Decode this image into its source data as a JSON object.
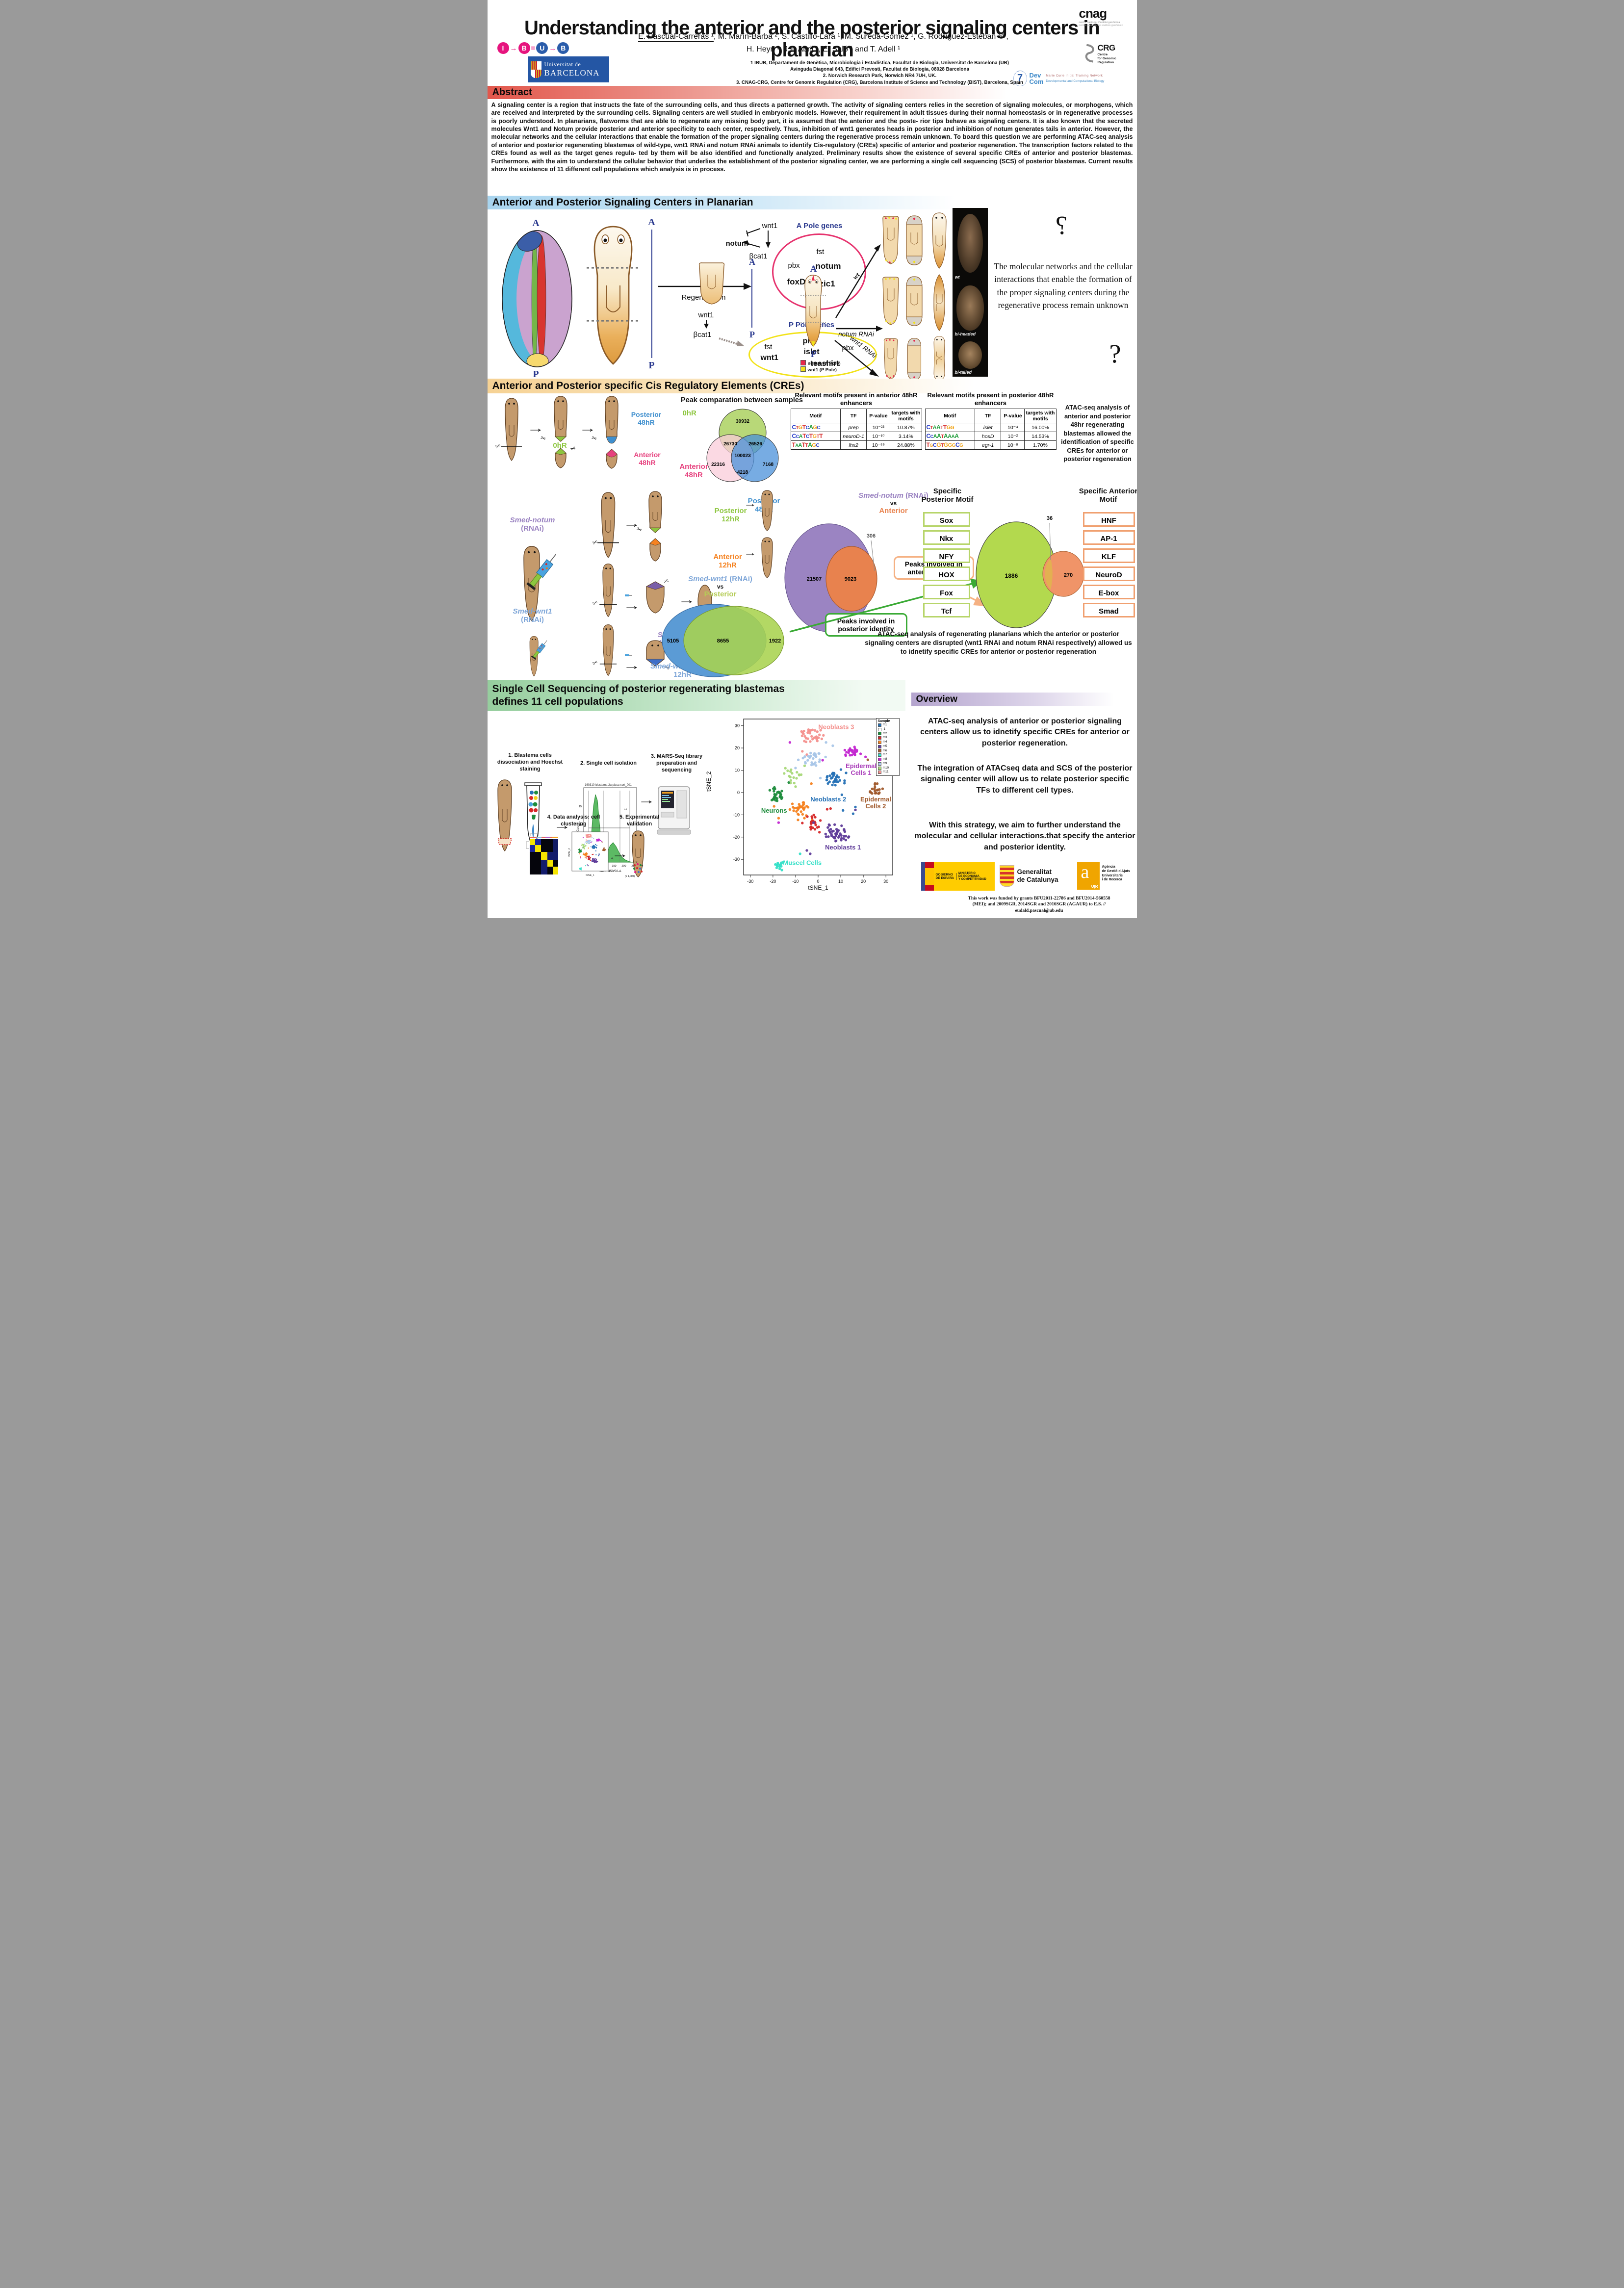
{
  "poster": {
    "title": "Understanding the anterior and the posterior signaling centers in planarian",
    "authors1a": "E. Pascual-Carreras ¹",
    "authors1b": ", M. Marín-Barba ², S. Castillo-Lara ¹, M. Sureda-Gómez ¹, G. Rodríguez-Esteban ³/⁴,",
    "authors2": "H. Heyn ³, J.F. Abril ¹, E. Saló ¹ and T. Adell ¹",
    "affiliations": [
      "1 IBUB, Departament de Genètica, Microbiologia i Estadística, Facultat de Biologia, Universitat de Barcelona (UB)",
      "Avinguda Diagonal 643, Edifici Prevosti, Facultat de Biologia, 08028 Barcelona",
      "2. Norwich Research Park, Norwich NR4 7UH, UK.",
      "3. CNAG-CRG, Centre for Genomic Regulation (CRG), Barcelona Institute of Science and Technology (BIST), Barcelona, Spain",
      "4. Universitat Pompeu Fabra (UPF), Barcelona, Spain"
    ],
    "logos": {
      "ibub": {
        "l1": "I",
        "s1": "→",
        "l2": "B",
        "s2": "=",
        "l3": "U",
        "s3": "→",
        "l4": "B"
      },
      "ub1": "Universitat de",
      "ub2": "BARCELONA",
      "cnag": "cnag",
      "cnag_sub1": "centre nacional d'anàlisi genòmica",
      "cnag_sub2": "centro nacional de análisis genómico",
      "crg": "CRG",
      "crg_sub1": "Centre",
      "crg_sub2": "for Genomic",
      "crg_sub3": "Regulation",
      "eu7": "7",
      "dev": "Dev",
      "com": "Com",
      "mc": "Marie Curie Initial Training Network",
      "dcb": "Developmental and Computational Biology"
    }
  },
  "abstract": {
    "heading": "Abstract",
    "body": "A signaling center is a region that instructs the fate of the surrounding cells, and thus directs a patterned growth. The activity of signaling centers relies in the secretion of signaling molecules, or morphogens, which are received and interpreted by the surrounding cells. Signaling centers are well studied in embryonic models. However, their requirement in adult tissues during their normal homeostasis or in regenerative processes is poorly understood. In planarians, flatworms that are able to regenerate any missing body part, it is assumed that the anterior and the poste- rior tips behave as signaling centers. It is also known that the secreted molecules Wnt1 and Notum provide posterior and anterior specificity to each center, respectively. Thus, inhibition of wnt1 generates heads in posterior and inhibition of notum generates tails in anterior. However, the molecular networks and the cellular interactions that enable the formation of the proper signaling centers during the regenerative process remain unknown. To board this question we are performing ATAC-seq analysis of anterior and posterior regenerating blastemas of wild-type, wnt1 RNAi and notum RNAi animals to identify Cis-regulatory (CREs) specific of anterior and posterior regeneration. The transcription factors related to the CREs found as well as the target genes regula- ted by them will be also identified and functionally analyzed. Preliminary results show the existence of several specific CREs of anterior and posterior blastemas. Furthermore, with the aim to understand the cellular behavior that underlies the establishment of the posterior signaling center, we are performing a single cell sequencing (SCS) of posterior blastemas. Current results show the existence of 11 different cell populations which analysis is in process."
  },
  "signaling": {
    "heading": "Anterior and Posterior Signaling Centers in Planarian",
    "a": "A",
    "p": "P",
    "regeneration": "Regeneration",
    "wnt1": "wnt1",
    "notum": "notum",
    "bcat1": "βcat1",
    "a_pole_title": "A Pole genes",
    "ap_pbx": "pbx",
    "ap_fst": "fst",
    "ap_foxd": "foxD",
    "ap_notum": "notum",
    "ap_zic1": "zic1",
    "p_pole_title": "P Pole genes",
    "pp_fst": "fst",
    "pp_wnt1": "wnt1",
    "pp_pitx": "pitx",
    "pp_islet": "islet",
    "pp_pbx": "pbx",
    "pp_teashirt": "teashirt",
    "wt": "wt",
    "notum_rnai": "notum RNAi",
    "wnt1_rnai": "wnt1 RNAi",
    "legend_notum": "notum (A Pole)",
    "legend_wnt1": "wnt1 (P Pole)",
    "photo_wt": "wt",
    "photo_biheaded": "bi-headed",
    "photo_bitailed": "bi-tailed",
    "quote": "The molecular networks and the cellular interactions that enable the formation of the proper signaling centers during the regenerative process remain unknown",
    "qmark": "?"
  },
  "cres": {
    "heading": "Anterior and Posterior specific Cis Regulatory Elements (CREs)",
    "ohr": "0hR",
    "posterior48": "Posterior 48hR",
    "anterior48": "Anterior 48hR",
    "posterior12": "Posterior 12hR",
    "anterior12": "Anterior 12hR",
    "smed_notum": "Smed-notum",
    "smed_wnt1": "Smed-wnt1",
    "rnai": "(RNAi)",
    "rnai12": "(RNAi) 12hR",
    "venn_title": "Peak comparation between samples",
    "side_note": "ATAC-seq analysis of anterior and posterior 48hr regenerating blastemas allowed the identification of specific CREs for anterior or posterior regeneration",
    "vs": "vs",
    "callout_anterior": "Peaks involved in anterior identity",
    "callout_posterior": "Peaks involved in posterior identity",
    "sp_title": "Specific Posterior Motif",
    "sa_title": "Specific Anterior Motif",
    "p_motifs": [
      "Sox",
      "Nkx",
      "NFY",
      "HOX",
      "Fox",
      "Tcf"
    ],
    "a_motifs": [
      "HNF",
      "AP-1",
      "KLF",
      "NeuroD",
      "E-box",
      "Smad"
    ],
    "bottom_note": "ATAC-seq analysis of regenerating planarians which the anterior or posterior signaling centers are disrupted (wnt1 RNAi and notum RNAi respectively) allowed us to idnetify specific CREs for anterior or posterior regeneration"
  },
  "scs": {
    "heading1": "Single Cell Sequencing of posterior regenerating blastemas",
    "heading2": "defines 11 cell populations",
    "step1": "1. Blastema cells dissociation and Hoechst staining",
    "step2": "2. Single cell isolation",
    "step3": "3. MARS-Seq  library preparation and sequencing",
    "step4": "4. Data analysis: cell clustering",
    "step5": "5. Experimental validation",
    "facs": {
      "title": "160310-blastema 2a placa sort_001",
      "xlabel": "VIO F 450/50-A",
      "ylabel": "Count",
      "unit": "(x 1,000)",
      "g1": "2c",
      "g2": "4c",
      "g3": "tot",
      "xt": [
        "50",
        "100",
        "150",
        "200",
        "250"
      ],
      "yt": [
        "0",
        "5",
        "10",
        "15"
      ]
    },
    "qmark": "?"
  },
  "overview": {
    "heading": "Overview",
    "p1": "ATAC-seq analysis of anterior or posterior signaling centers allow us to idnetify specific CREs for anterior or posterior regeneration.",
    "p2": "The integration of ATACseq data and SCS of the posterior signaling center will allow us to relate posterior specific TFs to different cell types.",
    "p3": "With this strategy, we aim to further understand the molecular and cellular interactions.that specify the anterior and posterior identity."
  },
  "funding": {
    "gob1": "GOBIERNO",
    "gob2": "DE ESPAÑA",
    "min1": "MINISTERIO",
    "min2": "DE ECONOMIA",
    "min3": "Y COMPETITIVIDAD",
    "gen1": "Generalitat",
    "gen2": "de Catalunya",
    "ag_a": "a",
    "ag_ur": "U|R",
    "ag1": "Agència",
    "ag2": "de Gestió d'Ajuts",
    "ag3": "Universitaris",
    "ag4": "i de Recerca",
    "t1": "This work was funded by grants BFU2011-22786 and BFU2014-560558",
    "t2": "(MEI); and 2009SGR, 2014SGR and 2016SGR (AGAUR) to E.S. //",
    "t3": "eudald.pascual@ub.edu"
  },
  "chart_data": [
    {
      "type": "venn",
      "title": "Peak comparation between samples",
      "sets": [
        {
          "label": "0hR",
          "color": "#a6ce56",
          "only": 30932
        },
        {
          "label": "Anterior 48hR",
          "color": "#f9ccd9",
          "only": 22316
        },
        {
          "label": "Posterior 48hR",
          "color": "#4a90d9",
          "only": 7168
        }
      ],
      "overlaps": {
        "oa": 26730,
        "op": 26526,
        "ap": 4218,
        "all": 100023
      }
    },
    {
      "type": "venn",
      "title": "Smed-notum (RNAi) vs Anterior",
      "sets": [
        {
          "label": "Smed-notum (RNAi)",
          "color": "#9b84c2",
          "only": 21507
        },
        {
          "label": "Anterior",
          "color": "#e8824e",
          "only": 306
        }
      ],
      "overlap": 9023
    },
    {
      "type": "venn",
      "title": "Smed-wnt1 (RNAi) vs Posterior",
      "sets": [
        {
          "label": "Smed-wnt1 (RNAi)",
          "color": "#5b9bd5",
          "only": 5105
        },
        {
          "label": "Posterior",
          "color": "#a9d34f",
          "only": 1922
        }
      ],
      "overlap": 8655
    },
    {
      "type": "venn",
      "title": "Specific motif overlap",
      "sets": [
        {
          "label": "Specific Posterior Motif",
          "color": "#b3d94e",
          "only": 1886
        },
        {
          "label": "Specific Anterior Motif",
          "color": "#f09468",
          "only": 270
        }
      ],
      "overlap": 36
    },
    {
      "type": "table",
      "title": "Relevant motifs present in anterior 48hR enhancers",
      "columns": [
        "Motif",
        "TF",
        "P-value",
        "targets with motifs"
      ],
      "rows": [
        {
          "motif": "CTGTCAGC",
          "tf": "prep",
          "p": "10⁻²³",
          "pct": "10.87%"
        },
        {
          "motif": "CCATCTGTT",
          "tf": "neuroD-1",
          "p": "10⁻¹⁰",
          "pct": "3.14%"
        },
        {
          "motif": "TAATTAGC",
          "tf": "lhx2",
          "p": "10⁻⁵⁹",
          "pct": "24.88%"
        }
      ]
    },
    {
      "type": "table",
      "title": "Relevant motifs present in posterior 48hR enhancers",
      "columns": [
        "Motif",
        "TF",
        "P-value",
        "targets with motifs"
      ],
      "rows": [
        {
          "motif": "CTAATTGG",
          "tf": "islet",
          "p": "10⁻⁴",
          "pct": "16.00%"
        },
        {
          "motif": "CCAATAAAA",
          "tf": "hoxD",
          "p": "10⁻²",
          "pct": "14.53%"
        },
        {
          "motif": "TGCGTGGGCG",
          "tf": "egr-1",
          "p": "10⁻⁸",
          "pct": "1.70%"
        }
      ]
    },
    {
      "type": "scatter",
      "title": "tSNE of posterior blastema cells, 11 populations",
      "xlabel": "tSNE_1",
      "ylabel": "tSNE_2",
      "xlim": [
        -33,
        33
      ],
      "ylim": [
        -37,
        33
      ],
      "xticks": [
        -30,
        -20,
        -10,
        0,
        10,
        20,
        30
      ],
      "yticks": [
        -30,
        -20,
        -10,
        0,
        10,
        20,
        30
      ],
      "legend_title": "Sample",
      "legend": [
        {
          "id": "m1",
          "color": "#2470b5"
        },
        {
          "id": "-1",
          "color": "#ffffff"
        },
        {
          "id": "m2",
          "color": "#1e8c3c"
        },
        {
          "id": "m3",
          "color": "#d62728"
        },
        {
          "id": "m4",
          "color": "#f58220"
        },
        {
          "id": "m5",
          "color": "#5f3c99"
        },
        {
          "id": "m6",
          "color": "#a05a2c"
        },
        {
          "id": "m7",
          "color": "#35e0c8"
        },
        {
          "id": "m8",
          "color": "#c327d1"
        },
        {
          "id": "m9",
          "color": "#a9c6e8"
        },
        {
          "id": "m10",
          "color": "#a8d878"
        },
        {
          "id": "m11",
          "color": "#f4918e"
        }
      ],
      "clusters": [
        {
          "sample": "m11",
          "color": "#f4918e",
          "cx": -3,
          "cy": 25.5,
          "sx": 5,
          "sy": 2.6,
          "n": 34,
          "extra": [
            [
              -7,
              18.5
            ],
            [
              -5,
              17
            ]
          ]
        },
        {
          "sample": "m9",
          "color": "#a9c6e8",
          "cx": -2,
          "cy": 15.5,
          "sx": 5.5,
          "sy": 3,
          "n": 30,
          "extra": [
            [
              3.5,
              22.5
            ],
            [
              6.5,
              21
            ],
            [
              1,
              6.5
            ],
            [
              -10,
              11
            ]
          ]
        },
        {
          "sample": "m10",
          "color": "#a8d878",
          "cx": -11,
          "cy": 7,
          "sx": 3,
          "sy": 3.5,
          "n": 18,
          "extra": [
            [
              -6,
              12
            ]
          ]
        },
        {
          "sample": "m8",
          "color": "#c327d1",
          "cx": 14.5,
          "cy": 18.5,
          "sx": 3.5,
          "sy": 2.2,
          "n": 26,
          "extra": [
            [
              -12.5,
              22.5
            ],
            [
              2,
              14.5
            ],
            [
              -17.5,
              -13.5
            ],
            [
              21,
              16
            ]
          ]
        },
        {
          "sample": "m1",
          "color": "#2470b5",
          "cx": 7.5,
          "cy": 6.5,
          "sx": 4,
          "sy": 3,
          "n": 32,
          "extra": [
            [
              10.5,
              -1
            ],
            [
              16.5,
              -6.5
            ],
            [
              11,
              -8
            ],
            [
              15.5,
              -9.5
            ]
          ]
        },
        {
          "sample": "m6",
          "color": "#a05a2c",
          "cx": 25.5,
          "cy": 1.5,
          "sx": 3.2,
          "sy": 2.4,
          "n": 20,
          "extra": [
            [
              22,
              14.7
            ]
          ]
        },
        {
          "sample": "m2",
          "color": "#1e8c3c",
          "cx": -18.5,
          "cy": -1.5,
          "sx": 2.6,
          "sy": 3.2,
          "n": 32,
          "extra": [
            [
              -13,
              4.5
            ]
          ]
        },
        {
          "sample": "m4",
          "color": "#f58220",
          "cx": -8.5,
          "cy": -8,
          "sx": 4.5,
          "sy": 4,
          "n": 34,
          "extra": [
            [
              -17.5,
              -11.5
            ],
            [
              -19.5,
              -6.2
            ],
            [
              -3,
              4
            ]
          ]
        },
        {
          "sample": "m3",
          "color": "#d62728",
          "cx": -3.5,
          "cy": -14.5,
          "sx": 4,
          "sy": 4,
          "n": 24,
          "extra": [
            [
              4,
              -7.5
            ],
            [
              5.5,
              -7.2
            ]
          ]
        },
        {
          "sample": "m5",
          "color": "#5f3c99",
          "cx": 8.5,
          "cy": -18.5,
          "sx": 5,
          "sy": 3.5,
          "n": 46,
          "extra": [
            [
              16.5,
              -7.8
            ],
            [
              -2,
              -13.5
            ],
            [
              -5,
              -26
            ],
            [
              -3.5,
              -27.5
            ]
          ]
        },
        {
          "sample": "m7",
          "color": "#35e0c8",
          "cx": -17,
          "cy": -33,
          "sx": 2.2,
          "sy": 1.4,
          "n": 16,
          "extra": [
            [
              -8,
              -27.5
            ]
          ]
        }
      ],
      "annotations": [
        {
          "text": "Neoblasts 3",
          "x": 8,
          "y": 28.5,
          "color": "#f4918e"
        },
        {
          "text": "Epidermal",
          "text2": "Cells 1",
          "x": 19,
          "y": 11,
          "color": "#a83ab8"
        },
        {
          "text": "Epidermal",
          "text2": "Cells 2",
          "x": 25.5,
          "y": -4,
          "color": "#a05a2c"
        },
        {
          "text": "Neoblasts 2",
          "x": 4.5,
          "y": -4,
          "color": "#2470b5"
        },
        {
          "text": "Neurons",
          "x": -19.5,
          "y": -9,
          "color": "#1e8c3c"
        },
        {
          "text": "Neoblasts 1",
          "x": 11,
          "y": -25.5,
          "color": "#5f3c99"
        },
        {
          "text": "Muscel Cells",
          "x": -7,
          "y": -32.5,
          "color": "#35e0c8"
        }
      ]
    }
  ]
}
